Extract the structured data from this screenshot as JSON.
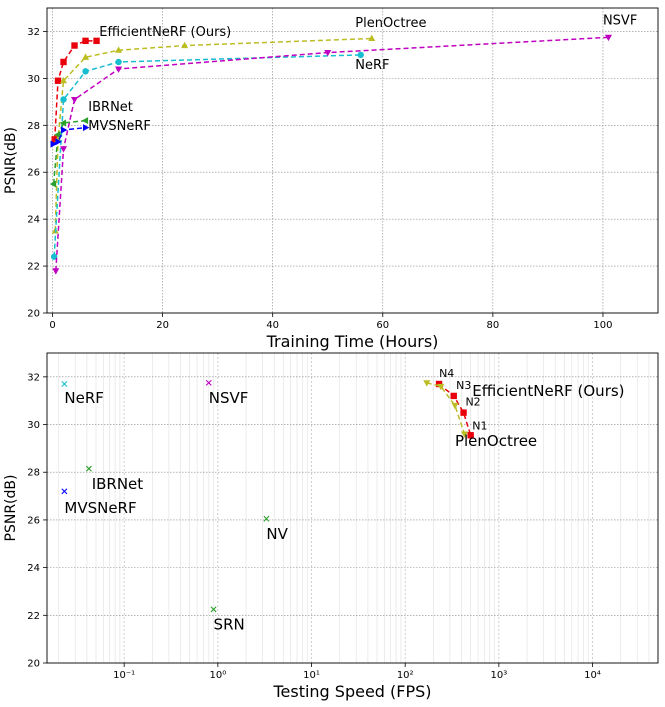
{
  "chart_data": [
    {
      "type": "line",
      "xlabel": "Training Time (Hours)",
      "ylabel": "PSNR(dB)",
      "xlim": [
        -1,
        110
      ],
      "ylim": [
        20,
        33
      ],
      "xticks": [
        0,
        20,
        40,
        60,
        80,
        100
      ],
      "yticks": [
        20,
        22,
        24,
        26,
        28,
        30,
        32
      ],
      "grid": true,
      "series": [
        {
          "name": "EfficientNeRF (Ours)",
          "color": "#e8000b",
          "marker": "square",
          "x": [
            0.4,
            1.0,
            2.0,
            4.0,
            6.0,
            8.0
          ],
          "y": [
            27.4,
            29.9,
            30.7,
            31.4,
            31.6,
            31.6
          ]
        },
        {
          "name": "PlenOctree",
          "color": "#bcbd22",
          "marker": "triangle-up",
          "x": [
            0.5,
            1.0,
            2.0,
            6.0,
            12.0,
            24.0,
            58.0
          ],
          "y": [
            23.5,
            27.4,
            29.9,
            30.9,
            31.2,
            31.4,
            31.7
          ]
        },
        {
          "name": "NeRF",
          "color": "#17becf",
          "marker": "circle",
          "x": [
            0.3,
            2.0,
            6.0,
            12.0,
            56.0
          ],
          "y": [
            22.4,
            29.1,
            30.3,
            30.7,
            31.0
          ]
        },
        {
          "name": "NSVF",
          "color": "#c000c0",
          "marker": "triangle-down",
          "x": [
            0.6,
            2.0,
            4.0,
            12.0,
            50.0,
            101.0
          ],
          "y": [
            21.8,
            27.0,
            29.1,
            30.4,
            31.1,
            31.75
          ]
        },
        {
          "name": "IBRNet",
          "color": "#2ca02c",
          "marker": "triangle-left",
          "x": [
            0.2,
            1.0,
            2.0,
            6.0
          ],
          "y": [
            25.5,
            27.6,
            28.1,
            28.2
          ]
        },
        {
          "name": "MVSNeRF",
          "color": "#0000ff",
          "marker": "triangle-right",
          "x": [
            0.1,
            1.0,
            2.0,
            6.0
          ],
          "y": [
            27.2,
            27.3,
            27.8,
            27.9
          ]
        }
      ],
      "labels": [
        {
          "text": "EfficientNeRF (Ours)",
          "x": 8.5,
          "y": 31.8,
          "color": "#000000",
          "size": 13
        },
        {
          "text": "PlenOctree",
          "x": 55.0,
          "y": 32.2,
          "color": "#000000",
          "size": 13
        },
        {
          "text": "NSVF",
          "x": 100.0,
          "y": 32.3,
          "color": "#000000",
          "size": 13
        },
        {
          "text": "NeRF",
          "x": 55.0,
          "y": 30.4,
          "color": "#000000",
          "size": 13
        },
        {
          "text": "IBRNet",
          "x": 6.5,
          "y": 28.6,
          "color": "#000000",
          "size": 13
        },
        {
          "text": "MVSNeRF",
          "x": 6.5,
          "y": 27.8,
          "color": "#000000",
          "size": 13
        }
      ]
    },
    {
      "type": "scatter",
      "xlabel": "Testing Speed (FPS)",
      "ylabel": "PSNR(dB)",
      "xscale": "log",
      "xlim": [
        0.015,
        50000
      ],
      "ylim": [
        20,
        33
      ],
      "xticks": [
        0.1,
        1,
        10,
        100,
        1000,
        10000
      ],
      "xticklabels": [
        "10⁻¹",
        "10⁰",
        "10¹",
        "10²",
        "10³",
        "10⁴"
      ],
      "yticks": [
        20,
        22,
        24,
        26,
        28,
        30,
        32
      ],
      "grid": true,
      "points": [
        {
          "name": "NeRF",
          "x": 0.023,
          "y": 31.7,
          "color": "#17becf"
        },
        {
          "name": "NSVF",
          "x": 0.8,
          "y": 31.75,
          "color": "#c000c0"
        },
        {
          "name": "IBRNet",
          "x": 0.042,
          "y": 28.15,
          "color": "#2ca02c"
        },
        {
          "name": "MVSNeRF",
          "x": 0.023,
          "y": 27.2,
          "color": "#0000ff"
        },
        {
          "name": "NV",
          "x": 3.3,
          "y": 26.05,
          "color": "#2ca02c"
        },
        {
          "name": "SRN",
          "x": 0.9,
          "y": 22.25,
          "color": "#2ca02c"
        }
      ],
      "series": [
        {
          "name": "EfficientNeRF (Ours)",
          "color": "#e8000b",
          "marker": "square",
          "x": [
            230,
            330,
            420,
            500
          ],
          "y": [
            31.7,
            31.2,
            30.5,
            29.55
          ]
        },
        {
          "name": "PlenOctree",
          "color": "#bcbd22",
          "marker": "triangle-down",
          "x": [
            170,
            240,
            340,
            430
          ],
          "y": [
            31.75,
            31.6,
            30.8,
            29.6
          ]
        }
      ],
      "labels": [
        {
          "text": "NeRF",
          "x": 0.023,
          "y": 30.9,
          "color": "#000000",
          "size": 15
        },
        {
          "text": "NSVF",
          "x": 0.8,
          "y": 30.9,
          "color": "#000000",
          "size": 15
        },
        {
          "text": "IBRNet",
          "x": 0.045,
          "y": 27.3,
          "color": "#000000",
          "size": 15
        },
        {
          "text": "MVSNeRF",
          "x": 0.023,
          "y": 26.3,
          "color": "#000000",
          "size": 15
        },
        {
          "text": "NV",
          "x": 3.3,
          "y": 25.2,
          "color": "#000000",
          "size": 15
        },
        {
          "text": "SRN",
          "x": 0.9,
          "y": 21.4,
          "color": "#000000",
          "size": 15
        },
        {
          "text": "EfficientNeRF (Ours)",
          "x": 520,
          "y": 31.2,
          "color": "#000000",
          "size": 15
        },
        {
          "text": "PlenOctree",
          "x": 340,
          "y": 29.1,
          "color": "#000000",
          "size": 15
        },
        {
          "text": "N4",
          "x": 230,
          "y": 32.0,
          "color": "#000000",
          "size": 11
        },
        {
          "text": "N3",
          "x": 350,
          "y": 31.5,
          "color": "#000000",
          "size": 11
        },
        {
          "text": "N2",
          "x": 440,
          "y": 30.8,
          "color": "#000000",
          "size": 11
        },
        {
          "text": "N1",
          "x": 520,
          "y": 29.8,
          "color": "#000000",
          "size": 11
        }
      ]
    }
  ]
}
